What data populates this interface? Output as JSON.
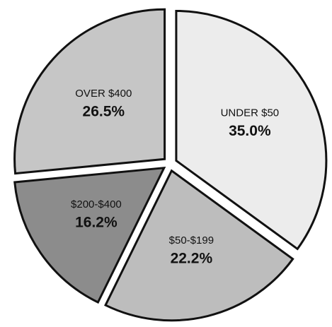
{
  "chart_data": {
    "type": "pie",
    "categories": [
      "UNDER $50",
      "$50-$199",
      "$200-$400",
      "OVER $400"
    ],
    "values": [
      35.0,
      22.2,
      16.2,
      26.5
    ],
    "value_labels": [
      "35.0%",
      "22.2%",
      "16.2%",
      "26.5%"
    ],
    "colors": [
      "#ececec",
      "#bdbdbd",
      "#8c8c8c",
      "#c6c6c6"
    ]
  }
}
